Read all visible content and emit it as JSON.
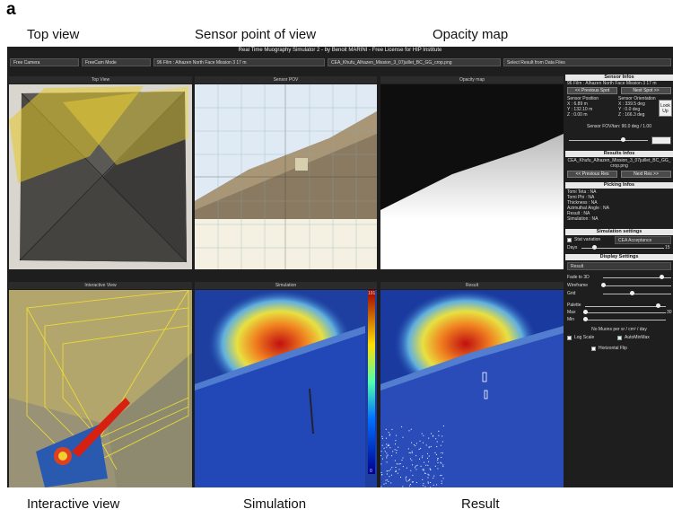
{
  "figure_label": "a",
  "captions": {
    "top_view": "Top view",
    "sensor_pov": "Sensor point of view",
    "opacity_map": "Opacity map",
    "interactive_view": "Interactive view",
    "simulation": "Simulation",
    "result": "Result"
  },
  "window": {
    "title": "Real Time Muography Simulator 2 - by Benoit MARINI - Free License for HIP Institute",
    "dropdowns": [
      "Free Camera",
      "FreeCam Mode",
      "96 Film : Alhazen North Face Mission 3 17 m",
      "CEA_Khufu_Alhazen_Mission_3_07juillet_BC_GG_crop.png",
      "Select Result from Data Files"
    ],
    "view_titles": [
      "Top View",
      "Sensor POV",
      "Opacity map",
      "Interactive View",
      "Simulation",
      "Result"
    ]
  },
  "colorbar": {
    "max": 191,
    "min": 0
  },
  "panel": {
    "sensor_infos": {
      "header": "Sensor Infos",
      "film": "96 Film : Alhazen North Face Mission 3 17 m",
      "prev": "<< Previous Spot",
      "next": "Next Spot >>",
      "position_label": "Sensor Position",
      "position": [
        "X : 6.89 m",
        "Y : 132.10 m",
        "Z : 0.00 m"
      ],
      "orientation_label": "Sensor Orientation",
      "orientation": [
        "X : 339.5 deg",
        "Y : 0.0 deg",
        "Z : 166.3 deg"
      ],
      "look_up": "Look Up",
      "fov": "Sensor FOV/tan: 90.0 deg / 1.00"
    },
    "results_infos": {
      "header": "Results Infos",
      "file": "CEA_Khufu_Alhazen_Mission_3_07juillet_BC_GG_crop.png",
      "prev": "<< Previous Res",
      "next": "Next Res >>"
    },
    "picking_infos": {
      "header": "Picking Infos",
      "lines": [
        "Tomi Teta : NA",
        "Tomi Phi : NA",
        "Thickness : NA",
        "Azimuthal Angle : NA",
        "Result : NA",
        "Simulation : NA"
      ]
    },
    "simulation_settings": {
      "header": "Simulation settings",
      "stat_variation": "Stat variation",
      "acceptance": "CEA Acceptance",
      "days_label": "Days",
      "days": 15
    },
    "display_settings": {
      "header": "Display Settings",
      "mode": "Result",
      "sliders": [
        "Fade to 3D",
        "Wireframe",
        "Grid"
      ],
      "palette": "Palette",
      "max_label": "Max",
      "max": 30,
      "min_label": "Min",
      "unit": "No Muons per sr / cm² / day",
      "log_scale": "Log Scale",
      "auto_min_max": "AutoMinMax",
      "horizontal_flip": "Horizontal Flip"
    }
  }
}
